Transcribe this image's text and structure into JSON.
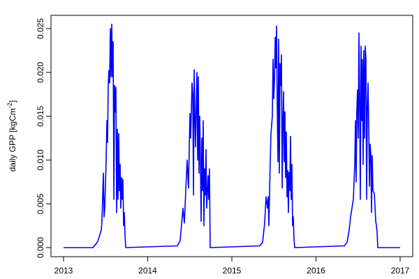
{
  "chart_data": {
    "type": "line",
    "title": "",
    "xlabel": "",
    "ylabel": "daily GPP [kgCm",
    "ylabel_superscript": "-2",
    "ylabel_suffix": "]",
    "xlim": [
      2013,
      2017
    ],
    "ylim": [
      0,
      0.0255
    ],
    "x_ticks": [
      "2013",
      "2014",
      "2015",
      "2016",
      "2017"
    ],
    "x_tick_values": [
      2013,
      2014,
      2015,
      2016,
      2017
    ],
    "y_ticks": [
      "0.000",
      "0.005",
      "0.010",
      "0.015",
      "0.020",
      "0.025"
    ],
    "y_tick_values": [
      0,
      0.005,
      0.01,
      0.015,
      0.02,
      0.025
    ],
    "grid": false,
    "legend": "none",
    "series": [
      {
        "color": "#0000ff",
        "points": [
          [
            2013.0,
            0
          ],
          [
            2013.349,
            0
          ],
          [
            2013.407,
            0.0007
          ],
          [
            2013.448,
            0.002
          ],
          [
            2013.456,
            0.0028
          ],
          [
            2013.473,
            0.0085
          ],
          [
            2013.481,
            0.0035
          ],
          [
            2013.49,
            0.0045
          ],
          [
            2013.506,
            0.01
          ],
          [
            2013.515,
            0.0145
          ],
          [
            2013.523,
            0.012
          ],
          [
            2013.531,
            0.0185
          ],
          [
            2013.539,
            0.0202
          ],
          [
            2013.548,
            0.0188
          ],
          [
            2013.556,
            0.025
          ],
          [
            2013.564,
            0.0195
          ],
          [
            2013.573,
            0.0255
          ],
          [
            2013.581,
            0.0195
          ],
          [
            2013.589,
            0.0235
          ],
          [
            2013.598,
            0.0055
          ],
          [
            2013.606,
            0.0185
          ],
          [
            2013.614,
            0.0155
          ],
          [
            2013.622,
            0.0183
          ],
          [
            2013.631,
            0.004
          ],
          [
            2013.639,
            0.0135
          ],
          [
            2013.647,
            0.0055
          ],
          [
            2013.656,
            0.013
          ],
          [
            2013.664,
            0.0065
          ],
          [
            2013.672,
            0.0095
          ],
          [
            2013.68,
            0.0045
          ],
          [
            2013.689,
            0.008
          ],
          [
            2013.697,
            0.0055
          ],
          [
            2013.705,
            0.0078
          ],
          [
            2013.714,
            0.0025
          ],
          [
            2013.722,
            0.004
          ],
          [
            2013.73,
            0.0015
          ],
          [
            2013.739,
            0
          ],
          [
            2014.353,
            0.0002
          ],
          [
            2014.386,
            0.0008
          ],
          [
            2014.419,
            0.0045
          ],
          [
            2014.436,
            0.0028
          ],
          [
            2014.452,
            0.0065
          ],
          [
            2014.469,
            0.01
          ],
          [
            2014.485,
            0.0068
          ],
          [
            2014.502,
            0.0153
          ],
          [
            2014.51,
            0.0125
          ],
          [
            2014.527,
            0.0188
          ],
          [
            2014.535,
            0.0175
          ],
          [
            2014.544,
            0.006
          ],
          [
            2014.552,
            0.0203
          ],
          [
            2014.56,
            0.0155
          ],
          [
            2014.568,
            0.0115
          ],
          [
            2014.585,
            0.02
          ],
          [
            2014.593,
            0.01
          ],
          [
            2014.602,
            0.0195
          ],
          [
            2014.61,
            0.0085
          ],
          [
            2014.618,
            0.015
          ],
          [
            2014.627,
            0.0095
          ],
          [
            2014.635,
            0.003
          ],
          [
            2014.643,
            0.0125
          ],
          [
            2014.651,
            0.0065
          ],
          [
            2014.66,
            0.0145
          ],
          [
            2014.668,
            0.0025
          ],
          [
            2014.676,
            0.009
          ],
          [
            2014.685,
            0.006
          ],
          [
            2014.693,
            0.0112
          ],
          [
            2014.701,
            0.0045
          ],
          [
            2014.718,
            0.0082
          ],
          [
            2014.726,
            0.0055
          ],
          [
            2014.734,
            0.009
          ],
          [
            2014.743,
            0
          ],
          [
            2015.332,
            0.0002
          ],
          [
            2015.365,
            0.0006
          ],
          [
            2015.39,
            0.0028
          ],
          [
            2015.407,
            0.0058
          ],
          [
            2015.423,
            0.0045
          ],
          [
            2015.432,
            0.0058
          ],
          [
            2015.44,
            0.0025
          ],
          [
            2015.456,
            0.0095
          ],
          [
            2015.465,
            0.013
          ],
          [
            2015.481,
            0.015
          ],
          [
            2015.49,
            0.0215
          ],
          [
            2015.498,
            0.017
          ],
          [
            2015.506,
            0.019
          ],
          [
            2015.515,
            0.024
          ],
          [
            2015.523,
            0.0205
          ],
          [
            2015.531,
            0.0253
          ],
          [
            2015.539,
            0.0172
          ],
          [
            2015.548,
            0.0098
          ],
          [
            2015.556,
            0.0238
          ],
          [
            2015.564,
            0.0085
          ],
          [
            2015.573,
            0.021
          ],
          [
            2015.581,
            0.0185
          ],
          [
            2015.589,
            0.022
          ],
          [
            2015.598,
            0.0068
          ],
          [
            2015.606,
            0.014
          ],
          [
            2015.614,
            0.0178
          ],
          [
            2015.622,
            0.0098
          ],
          [
            2015.631,
            0.0155
          ],
          [
            2015.639,
            0.008
          ],
          [
            2015.647,
            0.0132
          ],
          [
            2015.656,
            0.0058
          ],
          [
            2015.664,
            0.0088
          ],
          [
            2015.672,
            0.004
          ],
          [
            2015.68,
            0.0086
          ],
          [
            2015.689,
            0.0065
          ],
          [
            2015.697,
            0.0127
          ],
          [
            2015.705,
            0.0055
          ],
          [
            2015.714,
            0.0095
          ],
          [
            2015.722,
            0.0025
          ],
          [
            2015.73,
            0.0035
          ],
          [
            2015.739,
            0.001
          ],
          [
            2015.747,
            0
          ],
          [
            2016.336,
            0.0002
          ],
          [
            2016.369,
            0.0006
          ],
          [
            2016.394,
            0.002
          ],
          [
            2016.411,
            0.0035
          ],
          [
            2016.427,
            0.0045
          ],
          [
            2016.444,
            0.0055
          ],
          [
            2016.461,
            0.0098
          ],
          [
            2016.469,
            0.0145
          ],
          [
            2016.477,
            0.0075
          ],
          [
            2016.485,
            0.0155
          ],
          [
            2016.494,
            0.018
          ],
          [
            2016.502,
            0.0125
          ],
          [
            2016.51,
            0.0245
          ],
          [
            2016.519,
            0.0165
          ],
          [
            2016.527,
            0.0055
          ],
          [
            2016.535,
            0.023
          ],
          [
            2016.544,
            0.0145
          ],
          [
            2016.552,
            0.0215
          ],
          [
            2016.56,
            0.0095
          ],
          [
            2016.568,
            0.0225
          ],
          [
            2016.577,
            0.0125
          ],
          [
            2016.585,
            0.023
          ],
          [
            2016.593,
            0.0215
          ],
          [
            2016.602,
            0.0055
          ],
          [
            2016.61,
            0.016
          ],
          [
            2016.618,
            0.0188
          ],
          [
            2016.627,
            0.0135
          ],
          [
            2016.635,
            0.007
          ],
          [
            2016.643,
            0.0118
          ],
          [
            2016.652,
            0.0105
          ],
          [
            2016.66,
            0.004
          ],
          [
            2016.668,
            0.0105
          ],
          [
            2016.676,
            0.0065
          ],
          [
            2016.693,
            0.0062
          ],
          [
            2016.71,
            0.003
          ],
          [
            2016.718,
            0.0025
          ],
          [
            2016.726,
            0.0018
          ],
          [
            2016.734,
            0
          ],
          [
            2017.0,
            0
          ]
        ]
      }
    ]
  }
}
